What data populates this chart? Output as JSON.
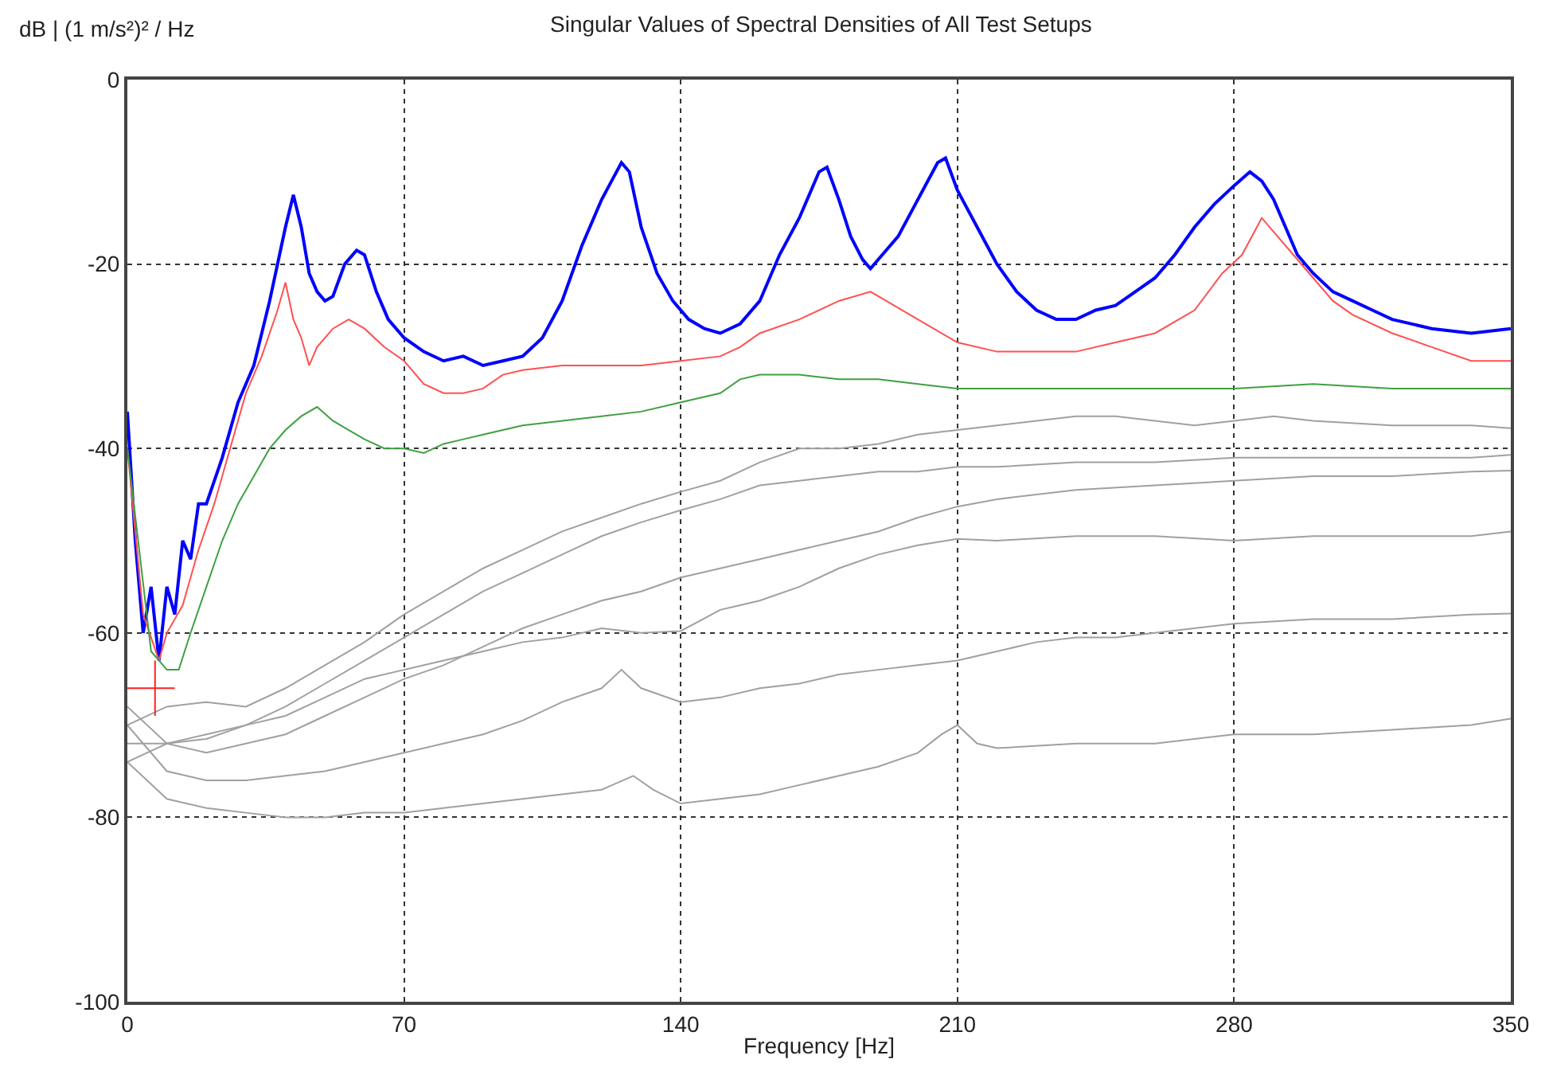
{
  "chart_data": {
    "type": "line",
    "title": "Singular Values of Spectral Densities of All Test Setups",
    "xlabel": "Frequency [Hz]",
    "ylabel": "dB | (1 m/s²)² / Hz",
    "xlim": [
      0,
      350
    ],
    "xticks": [
      0,
      70,
      140,
      210,
      280,
      350
    ],
    "ylim": [
      -100,
      0
    ],
    "yticks": [
      -100,
      -80,
      -60,
      -40,
      -20,
      0
    ],
    "grid": true,
    "marker": "none",
    "line_style": "solid",
    "series": [
      {
        "color": "#0000ff",
        "x": [
          0,
          2,
          4,
          6,
          8,
          10,
          12,
          14,
          16,
          18,
          20,
          24,
          28,
          32,
          36,
          40,
          42,
          44,
          46,
          48,
          50,
          52,
          55,
          58,
          60,
          63,
          66,
          70,
          75,
          80,
          85,
          90,
          95,
          100,
          105,
          110,
          115,
          120,
          125,
          127,
          130,
          134,
          138,
          142,
          146,
          150,
          155,
          160,
          165,
          170,
          175,
          177,
          180,
          183,
          186,
          188,
          190,
          195,
          200,
          205,
          207,
          210,
          215,
          220,
          225,
          230,
          235,
          240,
          245,
          250,
          255,
          260,
          265,
          270,
          275,
          280,
          284,
          287,
          290,
          293,
          296,
          300,
          305,
          310,
          315,
          320,
          325,
          330,
          340,
          350
        ],
        "values": [
          -36,
          -50,
          -60,
          -55,
          -63,
          -55,
          -58,
          -50,
          -52,
          -46,
          -46,
          -41,
          -35,
          -31,
          -24,
          -16,
          -12.5,
          -16,
          -21,
          -23,
          -24,
          -23.5,
          -20,
          -18.5,
          -19,
          -23,
          -26,
          -28,
          -29.5,
          -30.5,
          -30,
          -31,
          -30.5,
          -30,
          -28,
          -24,
          -18,
          -13,
          -9,
          -10,
          -16,
          -21,
          -24,
          -26,
          -27,
          -27.5,
          -26.5,
          -24,
          -19,
          -15,
          -10,
          -9.5,
          -13,
          -17,
          -19.5,
          -20.5,
          -19.5,
          -17,
          -13,
          -9,
          -8.5,
          -12,
          -16,
          -20,
          -23,
          -25,
          -26,
          -26,
          -25,
          -24.5,
          -23,
          -21.5,
          -19,
          -16,
          -13.5,
          -11.5,
          -10,
          -11,
          -13,
          -16,
          -19,
          -21,
          -23,
          -24,
          -25,
          -26,
          -26.5,
          -27,
          -27.5,
          -27
        ]
      },
      {
        "color": "#ff5050",
        "x": [
          0,
          4,
          8,
          10,
          14,
          18,
          22,
          26,
          30,
          34,
          38,
          40,
          42,
          44,
          46,
          48,
          52,
          56,
          60,
          65,
          70,
          75,
          80,
          85,
          90,
          95,
          100,
          110,
          120,
          130,
          140,
          150,
          155,
          160,
          170,
          180,
          188,
          192,
          200,
          210,
          220,
          230,
          240,
          250,
          260,
          270,
          277,
          282,
          287,
          290,
          295,
          300,
          305,
          310,
          320,
          330,
          340,
          350
        ],
        "values": [
          -40,
          -58,
          -63,
          -60,
          -57,
          -51,
          -46,
          -40,
          -34,
          -30,
          -25,
          -22,
          -26,
          -28,
          -31,
          -29,
          -27,
          -26,
          -27,
          -29,
          -30.5,
          -33,
          -34,
          -34,
          -33.5,
          -32,
          -31.5,
          -31,
          -31,
          -31,
          -30.5,
          -30,
          -29,
          -27.5,
          -26,
          -24,
          -23,
          -24,
          -26,
          -28.5,
          -29.5,
          -29.5,
          -29.5,
          -28.5,
          -27.5,
          -25,
          -21,
          -19,
          -15,
          -16.5,
          -19,
          -21.5,
          -24,
          -25.5,
          -27.5,
          -29,
          -30.5,
          -30.5
        ]
      },
      {
        "color": "#40a040",
        "x": [
          0,
          6,
          10,
          13,
          16,
          20,
          24,
          28,
          32,
          36,
          40,
          44,
          48,
          52,
          56,
          60,
          65,
          70,
          75,
          80,
          85,
          90,
          95,
          100,
          110,
          120,
          130,
          140,
          150,
          155,
          160,
          170,
          180,
          190,
          200,
          210,
          220,
          240,
          260,
          280,
          300,
          320,
          350
        ],
        "values": [
          -40,
          -62,
          -64,
          -64,
          -60,
          -55,
          -50,
          -46,
          -43,
          -40,
          -38,
          -36.5,
          -35.5,
          -37,
          -38,
          -39,
          -40,
          -40,
          -40.5,
          -39.5,
          -39,
          -38.5,
          -38,
          -37.5,
          -37,
          -36.5,
          -36,
          -35,
          -34,
          -32.5,
          -32,
          -32,
          -32.5,
          -32.5,
          -33,
          -33.5,
          -33.5,
          -33.5,
          -33.5,
          -33.5,
          -33,
          -33.5,
          -33.5
        ]
      },
      {
        "color": "#a0a0a0",
        "x": [
          0,
          10,
          20,
          30,
          40,
          50,
          60,
          70,
          80,
          90,
          100,
          110,
          120,
          130,
          140,
          150,
          160,
          170,
          180,
          190,
          200,
          210,
          220,
          230,
          240,
          250,
          260,
          270,
          280,
          290,
          300,
          320,
          340,
          350
        ],
        "values": [
          -70,
          -68,
          -67.5,
          -68,
          -66,
          -63.5,
          -61,
          -58,
          -55.5,
          -53,
          -51,
          -49,
          -47.5,
          -46,
          -44.7,
          -43.5,
          -41.5,
          -40,
          -40,
          -39.5,
          -38.5,
          -38,
          -37.5,
          -37,
          -36.5,
          -36.5,
          -37,
          -37.5,
          -37,
          -36.5,
          -37,
          -37.5,
          -37.5,
          -37.8
        ]
      },
      {
        "color": "#a0a0a0",
        "x": [
          0,
          10,
          20,
          30,
          40,
          50,
          60,
          70,
          80,
          90,
          100,
          110,
          120,
          130,
          140,
          150,
          160,
          170,
          180,
          190,
          200,
          210,
          220,
          240,
          260,
          280,
          300,
          320,
          340,
          350
        ],
        "values": [
          -72,
          -72,
          -71.5,
          -70,
          -68,
          -65.5,
          -63,
          -60.5,
          -58,
          -55.5,
          -53.5,
          -51.5,
          -49.5,
          -48,
          -46.7,
          -45.5,
          -44,
          -43.5,
          -43,
          -42.5,
          -42.5,
          -42,
          -42,
          -41.5,
          -41.5,
          -41,
          -41,
          -41,
          -41,
          -40.7
        ]
      },
      {
        "color": "#a0a0a0",
        "x": [
          0,
          10,
          20,
          30,
          40,
          50,
          60,
          70,
          80,
          90,
          100,
          110,
          120,
          130,
          140,
          150,
          160,
          170,
          180,
          190,
          200,
          210,
          220,
          240,
          260,
          280,
          300,
          320,
          340,
          350
        ],
        "values": [
          -74,
          -72,
          -73,
          -72,
          -71,
          -69,
          -67,
          -65,
          -63.5,
          -61.5,
          -59.5,
          -58,
          -56.5,
          -55.5,
          -54,
          -53,
          -52,
          -51,
          -50,
          -49,
          -47.5,
          -46.3,
          -45.5,
          -44.5,
          -44,
          -43.5,
          -43,
          -43,
          -42.5,
          -42.4
        ]
      },
      {
        "color": "#a0a0a0",
        "x": [
          0,
          10,
          20,
          30,
          40,
          50,
          60,
          70,
          80,
          90,
          100,
          110,
          120,
          130,
          140,
          150,
          160,
          170,
          180,
          190,
          200,
          210,
          220,
          240,
          260,
          280,
          300,
          320,
          340,
          350
        ],
        "values": [
          -68,
          -72,
          -71,
          -70,
          -69,
          -67,
          -65,
          -64,
          -63,
          -62,
          -61,
          -60.5,
          -59.5,
          -60,
          -59.8,
          -57.5,
          -56.5,
          -55,
          -53,
          -51.5,
          -50.5,
          -49.8,
          -50,
          -49.5,
          -49.5,
          -50,
          -49.5,
          -49.5,
          -49.5,
          -49
        ]
      },
      {
        "color": "#a0a0a0",
        "x": [
          0,
          10,
          20,
          30,
          40,
          50,
          60,
          70,
          80,
          90,
          100,
          110,
          120,
          125,
          130,
          140,
          150,
          160,
          170,
          180,
          190,
          200,
          210,
          220,
          230,
          240,
          250,
          260,
          280,
          300,
          320,
          340,
          350
        ],
        "values": [
          -70,
          -75,
          -76,
          -76,
          -75.5,
          -75,
          -74,
          -73,
          -72,
          -71,
          -69.5,
          -67.5,
          -66,
          -64,
          -66,
          -67.5,
          -67,
          -66,
          -65.5,
          -64.5,
          -64,
          -63.5,
          -63,
          -62,
          -61,
          -60.5,
          -60.5,
          -60,
          -59,
          -58.5,
          -58.5,
          -58,
          -57.9
        ]
      },
      {
        "color": "#a0a0a0",
        "x": [
          0,
          10,
          20,
          30,
          40,
          50,
          60,
          70,
          80,
          90,
          100,
          110,
          120,
          128,
          133,
          140,
          150,
          160,
          170,
          180,
          190,
          200,
          206,
          210,
          215,
          220,
          240,
          260,
          280,
          300,
          320,
          340,
          350
        ],
        "values": [
          -74,
          -78,
          -79,
          -79.5,
          -80,
          -80,
          -79.5,
          -79.5,
          -79,
          -78.5,
          -78,
          -77.5,
          -77,
          -75.5,
          -77,
          -78.5,
          -78,
          -77.5,
          -76.5,
          -75.5,
          -74.5,
          -73,
          -71,
          -70,
          -72,
          -72.5,
          -72,
          -72,
          -71,
          -71,
          -70.5,
          -70,
          -69.3
        ]
      },
      {
        "color": "#ff2020",
        "x": [
          0,
          12
        ],
        "values": [
          -66,
          -66
        ]
      },
      {
        "color": "#ff2020",
        "x": [
          7,
          7
        ],
        "values": [
          -63,
          -69
        ]
      }
    ]
  }
}
